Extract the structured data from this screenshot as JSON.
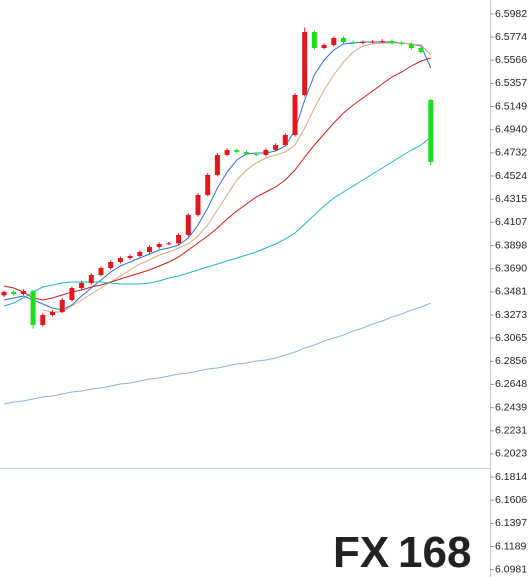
{
  "chart_data": {
    "type": "candlestick",
    "ylim": [
      6.0915,
      6.6108
    ],
    "yticks": [
      6.5982,
      6.5774,
      6.5566,
      6.5357,
      6.5149,
      {
        "value": 6.494,
        "label": "6.4940"
      },
      6.4732,
      6.4524,
      6.4315,
      6.4107,
      6.3898,
      {
        "value": 6.369,
        "label": "6.3690"
      },
      6.3481,
      6.3273,
      6.3065,
      6.2856,
      6.2648,
      6.2439,
      6.2231,
      6.2023,
      6.1814,
      6.1606,
      6.1397,
      6.1189,
      6.0981
    ],
    "up_color": "#e3171d",
    "down_color": "#19e019",
    "categories": [
      null,
      null,
      null,
      null,
      null,
      null,
      null,
      null,
      null,
      null,
      null,
      null,
      null,
      null,
      null,
      null,
      null,
      null,
      null,
      null,
      null,
      null,
      null,
      null,
      null,
      null,
      null,
      null,
      null,
      null,
      null,
      null,
      null,
      null,
      null,
      null,
      null,
      null,
      null,
      null,
      null,
      null,
      null,
      null,
      null
    ],
    "open": [
      6.345,
      6.348,
      6.3462,
      6.3489,
      6.3183,
      6.3273,
      6.33,
      6.3408,
      6.3516,
      6.3561,
      6.3633,
      6.3696,
      6.375,
      6.3786,
      6.3804,
      6.384,
      6.3885,
      6.3912,
      6.3918,
      6.3993,
      6.4173,
      6.4353,
      6.4533,
      6.4713,
      6.4758,
      6.474,
      6.4722,
      6.4713,
      6.4758,
      6.4803,
      6.4893,
      6.5253,
      6.582,
      6.5676,
      6.5703,
      6.5766,
      6.573,
      6.5721,
      6.573,
      6.5733,
      6.5739,
      6.5721,
      6.5712,
      6.5676,
      6.5208
    ],
    "high": [
      6.3495,
      6.35,
      6.3505,
      6.35,
      6.329,
      6.3318,
      6.3425,
      6.353,
      6.358,
      6.365,
      6.3712,
      6.3765,
      6.38,
      6.382,
      6.3855,
      6.39,
      6.3928,
      6.393,
      6.401,
      6.419,
      6.437,
      6.455,
      6.473,
      6.4775,
      6.477,
      6.4752,
      6.4735,
      6.4772,
      6.4818,
      6.491,
      6.527,
      6.586,
      6.5836,
      6.5718,
      6.578,
      6.578,
      6.5745,
      6.5745,
      6.5748,
      6.5755,
      6.5755,
      6.5735,
      6.5728,
      6.569,
      6.522
    ],
    "low": [
      6.3435,
      6.3448,
      6.345,
      6.315,
      6.317,
      6.326,
      6.329,
      6.3395,
      6.35,
      6.3545,
      6.362,
      6.368,
      6.3735,
      6.377,
      6.379,
      6.3825,
      6.387,
      6.39,
      6.3905,
      6.398,
      6.416,
      6.434,
      6.452,
      6.47,
      6.4728,
      6.471,
      6.47,
      6.47,
      6.4745,
      6.479,
      6.488,
      6.524,
      6.566,
      6.5665,
      6.569,
      6.5718,
      6.5708,
      6.571,
      6.5718,
      6.572,
      6.5708,
      6.57,
      6.566,
      6.5625,
      6.462
    ],
    "close": [
      6.348,
      6.3462,
      6.3489,
      6.3183,
      6.3273,
      6.33,
      6.3408,
      6.3516,
      6.3561,
      6.3633,
      6.3696,
      6.375,
      6.3786,
      6.3804,
      6.384,
      6.3885,
      6.3912,
      6.3918,
      6.3993,
      6.4173,
      6.4353,
      6.4533,
      6.4713,
      6.4758,
      6.474,
      6.4722,
      6.4713,
      6.4758,
      6.4803,
      6.4893,
      6.5253,
      6.582,
      6.5676,
      6.5703,
      6.5766,
      6.573,
      6.5721,
      6.573,
      6.5733,
      6.5739,
      6.5721,
      6.5712,
      6.5676,
      6.564,
      6.465
    ],
    "overlays": [
      {
        "color": "#2f6fd6",
        "values": [
          6.3408,
          6.3426,
          6.3444,
          6.3408,
          6.3372,
          6.3336,
          6.3318,
          6.3363,
          6.3444,
          6.3516,
          6.3588,
          6.366,
          6.3714,
          6.375,
          6.3786,
          6.3822,
          6.3858,
          6.3876,
          6.3903,
          6.3966,
          6.4083,
          6.4236,
          6.4416,
          6.456,
          6.4668,
          6.4722,
          6.4731,
          6.4731,
          6.4749,
          6.4794,
          6.4938,
          6.5208,
          6.5433,
          6.5568,
          6.5658,
          6.5712,
          6.5721,
          6.573,
          6.573,
          6.573,
          6.573,
          6.5721,
          6.5712,
          6.5694,
          6.5496
        ]
      },
      {
        "color": "#d9a77a",
        "values": [
          null,
          null,
          null,
          null,
          6.3318,
          6.33,
          6.33,
          6.3354,
          6.3408,
          6.3462,
          6.3516,
          6.357,
          6.3624,
          6.3678,
          6.3732,
          6.3768,
          6.3813,
          6.384,
          6.3876,
          6.3912,
          6.3984,
          6.4083,
          6.4218,
          6.4353,
          6.4488,
          6.4578,
          6.4641,
          6.4686,
          6.4713,
          6.474,
          6.4803,
          6.4956,
          6.5136,
          6.5298,
          6.5433,
          6.555,
          6.564,
          6.5694,
          6.5712,
          6.5721,
          6.5721,
          6.5721,
          6.5712,
          6.5703,
          6.5613
        ]
      },
      {
        "color": "#c8201e",
        "values": [
          6.3534,
          6.3516,
          6.348,
          6.3426,
          6.3408,
          6.3426,
          6.3453,
          6.348,
          6.3498,
          6.3525,
          6.3543,
          6.357,
          6.3597,
          6.3624,
          6.3651,
          6.3678,
          6.3714,
          6.375,
          6.3795,
          6.3858,
          6.3921,
          6.3984,
          6.4056,
          6.4137,
          6.4209,
          6.4272,
          6.4335,
          6.438,
          6.4425,
          6.4488,
          6.4578,
          6.4695,
          6.4803,
          6.4902,
          6.5001,
          6.5091,
          6.5163,
          6.5226,
          6.5289,
          6.5352,
          6.5415,
          6.546,
          6.5514,
          6.5559,
          6.5586
        ]
      },
      {
        "color": "#22b3c8",
        "values": [
          6.3354,
          6.3381,
          6.3426,
          6.348,
          6.3525,
          6.3543,
          6.3561,
          6.357,
          6.357,
          6.357,
          6.357,
          6.3561,
          6.3552,
          6.3552,
          6.3552,
          6.3561,
          6.3579,
          6.3606,
          6.3624,
          6.3651,
          6.3678,
          6.3705,
          6.3732,
          6.3759,
          6.3786,
          6.3813,
          6.384,
          6.3876,
          6.3912,
          6.3957,
          6.4011,
          6.4092,
          6.4173,
          6.4254,
          6.4326,
          6.438,
          6.4434,
          6.4488,
          6.4542,
          6.4596,
          6.465,
          6.4704,
          6.4758,
          6.4803,
          6.4875
        ]
      },
      {
        "color": "#8fb3d9",
        "values": [
          6.2472,
          6.249,
          6.2499,
          6.2517,
          6.2535,
          6.2544,
          6.2562,
          6.258,
          6.2589,
          6.2607,
          6.2616,
          6.2634,
          6.2652,
          6.2661,
          6.2679,
          6.2697,
          6.2706,
          6.2724,
          6.2742,
          6.2751,
          6.2769,
          6.2787,
          6.2796,
          6.2814,
          6.2832,
          6.2841,
          6.2859,
          6.2868,
          6.2886,
          6.2913,
          6.294,
          6.2976,
          6.3003,
          6.3039,
          6.3066,
          6.3093,
          6.3129,
          6.3156,
          6.3192,
          6.3219,
          6.3255,
          6.3282,
          6.3318,
          6.3345,
          6.3381
        ]
      }
    ],
    "watermark": {
      "prefix": "FX",
      "suffix": "168"
    }
  }
}
